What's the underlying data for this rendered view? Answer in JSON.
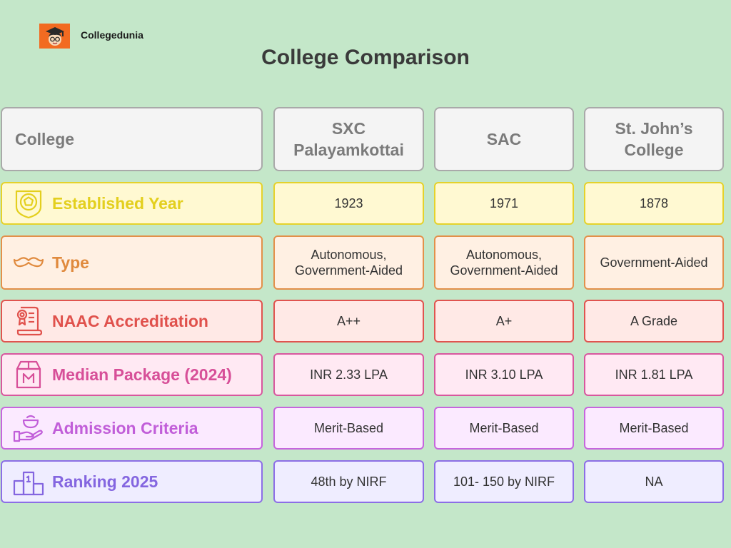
{
  "brand": {
    "name": "Collegedunia",
    "logo_icon": "cartoon-student-face-icon",
    "logo_color": "#f26b21"
  },
  "title": "College Comparison",
  "table": {
    "header": {
      "label": "College",
      "colleges": [
        "SXC\nPalayamkottai",
        "SAC",
        "St. John’s\nCollege"
      ]
    },
    "rows": [
      {
        "label": "Established Year",
        "icon": "badge-shield-icon",
        "color": "#e3cf1e",
        "values": [
          "1923",
          "1971",
          "1878"
        ]
      },
      {
        "label": "Type",
        "icon": "mustache-icon",
        "color": "#e08a3d",
        "values": [
          "Autonomous,\nGovernment-Aided",
          "Autonomous,\nGovernment-Aided",
          "Government-Aided"
        ]
      },
      {
        "label": "NAAC Accreditation",
        "icon": "certificate-scroll-icon",
        "color": "#e0514c",
        "values": [
          "A++",
          "A+",
          "A Grade"
        ]
      },
      {
        "label": "Median Package (2024)",
        "icon": "package-box-icon",
        "color": "#d74f98",
        "values": [
          "INR 2.33 LPA",
          "INR 3.10 LPA",
          "INR 1.81 LPA"
        ]
      },
      {
        "label": "Admission Criteria",
        "icon": "hand-bowl-icon",
        "color": "#c15ed9",
        "values": [
          "Merit-Based",
          "Merit-Based",
          "Merit-Based"
        ]
      },
      {
        "label": "Ranking 2025",
        "icon": "podium-icon",
        "color": "#8466e0",
        "values": [
          "48th by NIRF",
          "101- 150 by NIRF",
          "NA"
        ]
      }
    ]
  }
}
